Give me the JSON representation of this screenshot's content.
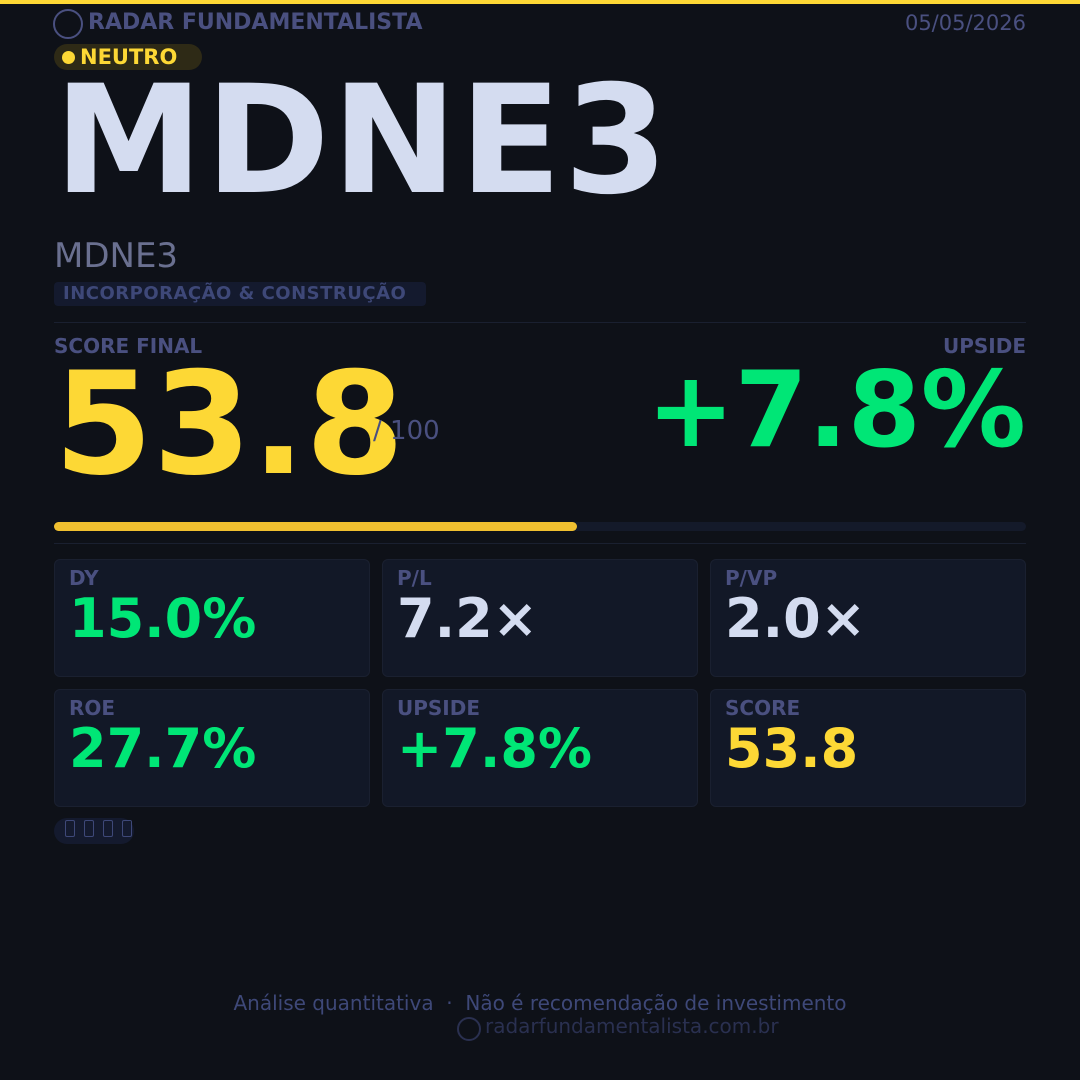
{
  "header": {
    "brand": "RADAR FUNDAMENTALISTA",
    "date": "05/05/2026",
    "badge": "NEUTRO"
  },
  "asset": {
    "ticker": "MDNE3",
    "name": "MDNE3",
    "sector": "INCORPORAÇÃO & CONSTRUÇÃO"
  },
  "score": {
    "label": "SCORE FINAL",
    "value": 53.8,
    "max": {
      "value": 100,
      "label": "/ 100"
    }
  },
  "upside": {
    "label": "UPSIDE",
    "value": "+7.8%"
  },
  "metrics": [
    {
      "label": "DY",
      "value": "15.0%",
      "color": "#00e676"
    },
    {
      "label": "P/L",
      "value": "7.2×",
      "color": "#d4dcf0"
    },
    {
      "label": "P/VP",
      "value": "2.0×",
      "color": "#d4dcf0"
    },
    {
      "label": "ROE",
      "value": "27.7%",
      "color": "#00e676"
    },
    {
      "label": "UPSIDE",
      "value": "+7.8%",
      "color": "#00e676"
    },
    {
      "label": "SCORE",
      "value": "53.8",
      "color": "#fdd835"
    }
  ],
  "footer": {
    "disclaimer": "Análise quantitativa  ·  Não é recomendação de investimento",
    "url": "radarfundamentalista.com.br"
  }
}
